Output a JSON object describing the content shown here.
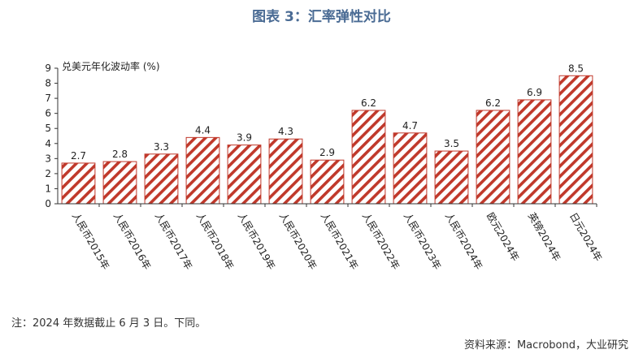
{
  "title": "图表 3：汇率弹性对比",
  "note": "注：2024 年数据截止 6 月 3 日。下同。",
  "source": "资料来源：Macrobond，大业研究",
  "chart_data": {
    "type": "bar",
    "title": "图表 3：汇率弹性对比",
    "ylabel": "兑美元年化波动率 (%)",
    "categories": [
      "人民币2015年",
      "人民币2016年",
      "人民币2017年",
      "人民币2018年",
      "人民币2019年",
      "人民币2020年",
      "人民币2021年",
      "人民币2022年",
      "人民币2023年",
      "人民币2024年",
      "欧元2024年",
      "英镑2024年",
      "日元2024年"
    ],
    "values": [
      2.7,
      2.8,
      3.3,
      4.4,
      3.9,
      4.3,
      2.9,
      6.2,
      4.7,
      3.5,
      6.2,
      6.9,
      8.5
    ],
    "value_labels": [
      "2.7",
      "2.8",
      "3.3",
      "4.4",
      "3.9",
      "4.3",
      "2.9",
      "6.2",
      "4.7",
      "3.5",
      "6.2",
      "6.9",
      "8.5"
    ],
    "yticks": [
      "0",
      "1",
      "2",
      "3",
      "4",
      "5",
      "6",
      "7",
      "8",
      "9"
    ],
    "ylim": [
      0,
      9
    ],
    "grid": false,
    "bar_fill": "diagonal-hatch",
    "bar_color": "#c0392b"
  }
}
